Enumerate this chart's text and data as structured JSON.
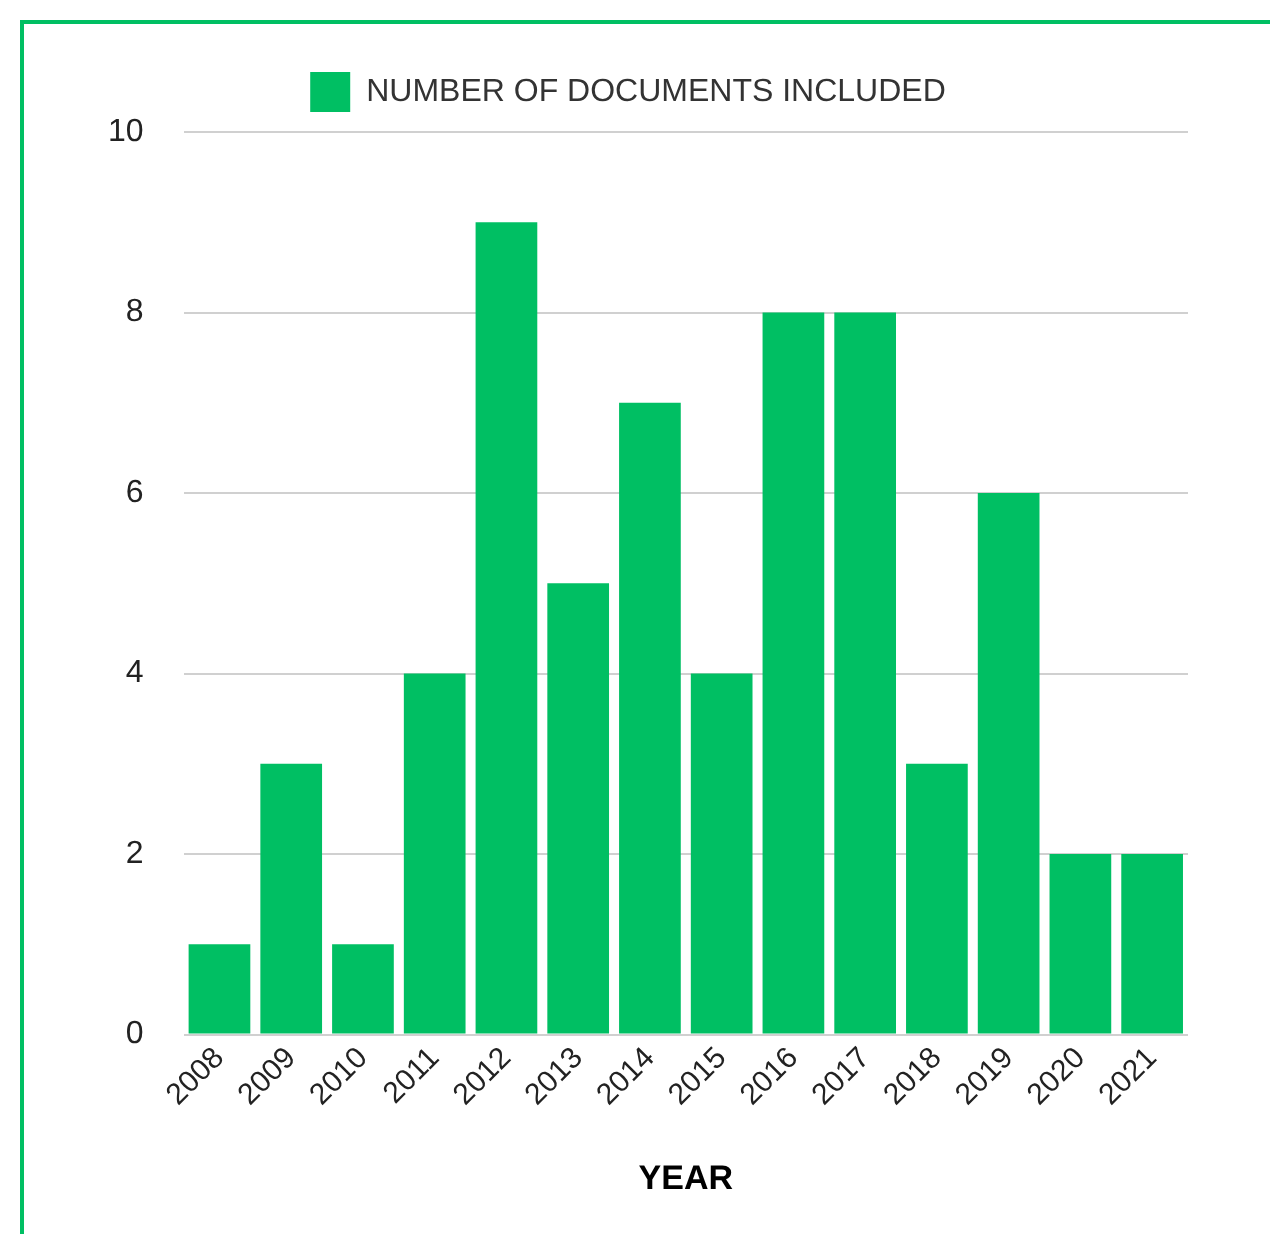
{
  "chart_data": {
    "type": "bar",
    "xlabel": "YEAR",
    "categories": [
      "2008",
      "2009",
      "2010",
      "2011",
      "2012",
      "2013",
      "2014",
      "2015",
      "2016",
      "2017",
      "2018",
      "2019",
      "2020",
      "2021"
    ],
    "series": [
      {
        "name": "NUMBER OF DOCUMENTS INCLUDED",
        "color": "#00bf63",
        "values": [
          1,
          3,
          1,
          4,
          9,
          5,
          7,
          4,
          8,
          8,
          3,
          6,
          2,
          2
        ]
      }
    ],
    "ylim": [
      0,
      10
    ],
    "yticks": [
      0,
      2,
      4,
      6,
      8,
      10
    ],
    "grid": "y",
    "legend": "top"
  }
}
